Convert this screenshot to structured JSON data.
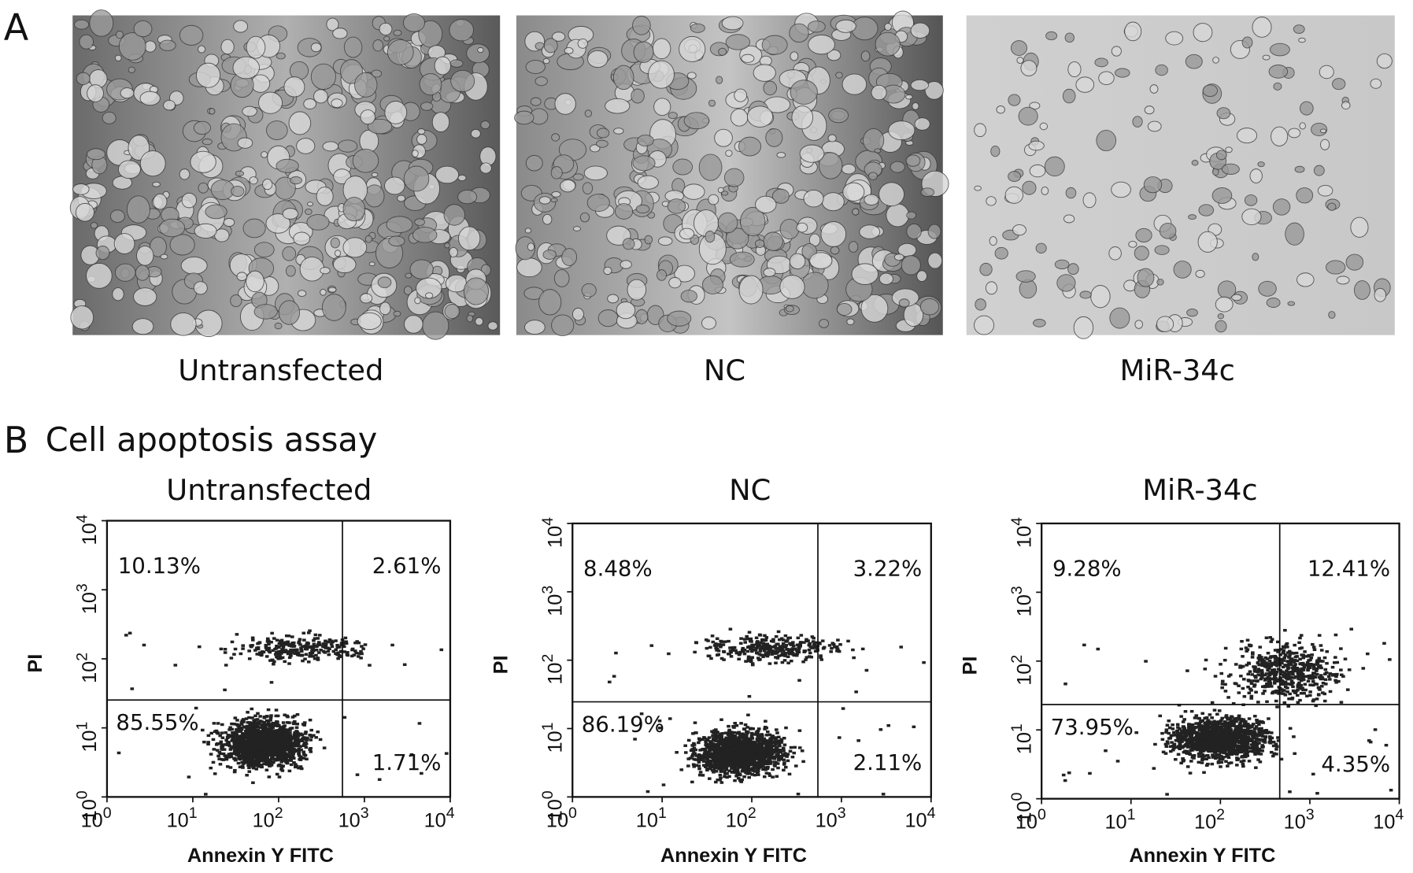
{
  "panel_a": {
    "label": "A",
    "images": [
      {
        "caption": "Untransfected"
      },
      {
        "caption": "NC"
      },
      {
        "caption": "MiR-34c"
      }
    ]
  },
  "panel_b": {
    "label": "B",
    "title": "Cell apoptosis assay",
    "x_axis_label": "Annexin Y FITC",
    "y_axis_label": "PI",
    "ticks": [
      {
        "base": "10",
        "exp": "0"
      },
      {
        "base": "10",
        "exp": "1"
      },
      {
        "base": "10",
        "exp": "2"
      },
      {
        "base": "10",
        "exp": "3"
      },
      {
        "base": "10",
        "exp": "4"
      }
    ],
    "plots": [
      {
        "title": "Untransfected",
        "quadrants": {
          "upper_left": "10.13%",
          "upper_right": "2.61%",
          "lower_left": "85.55%",
          "lower_right": "1.71%"
        }
      },
      {
        "title": "NC",
        "quadrants": {
          "upper_left": "8.48%",
          "upper_right": "3.22%",
          "lower_left": "86.19%",
          "lower_right": "2.11%"
        }
      },
      {
        "title": "MiR-34c",
        "quadrants": {
          "upper_left": "9.28%",
          "upper_right": "12.41%",
          "lower_left": "73.95%",
          "lower_right": "4.35%"
        }
      }
    ]
  }
}
